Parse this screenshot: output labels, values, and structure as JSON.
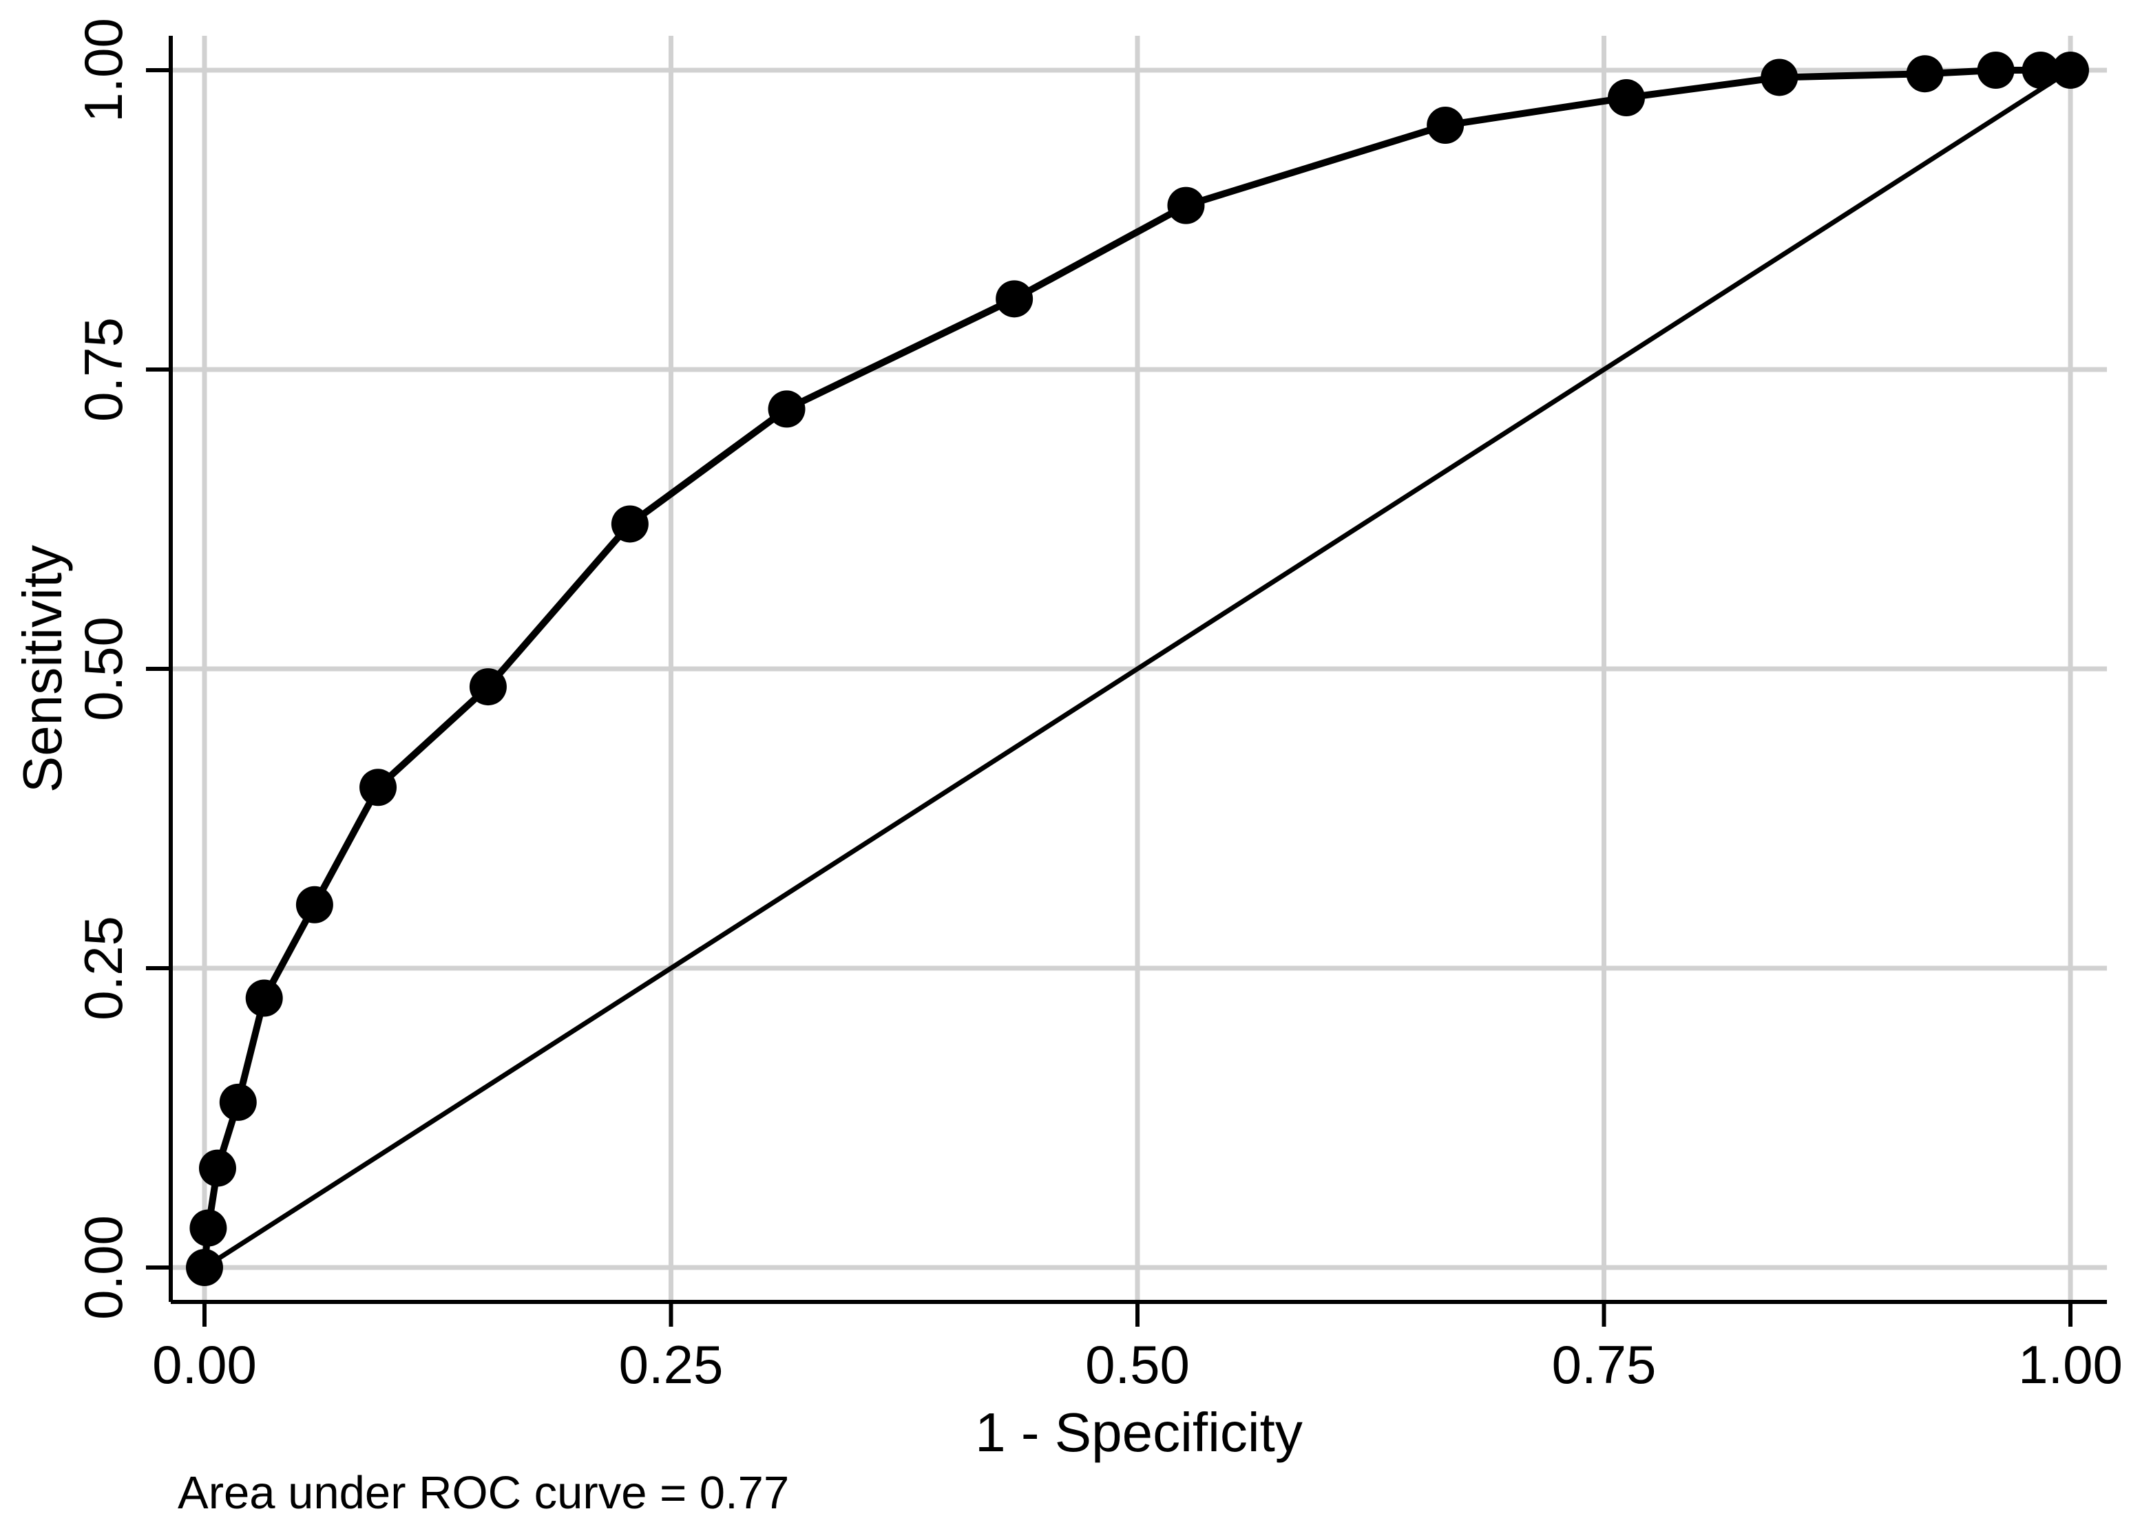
{
  "chart_data": {
    "type": "line",
    "title": "",
    "xlabel": "1 - Specificity",
    "ylabel": "Sensitivity",
    "xlim": [
      0,
      1
    ],
    "ylim": [
      0,
      1
    ],
    "grid": true,
    "legend": "none",
    "x_tick_values": [
      0,
      0.25,
      0.5,
      0.75,
      1
    ],
    "x_tick_labels": [
      "0.00",
      "0.25",
      "0.50",
      "0.75",
      "1.00"
    ],
    "y_tick_values": [
      0,
      0.25,
      0.5,
      0.75,
      1
    ],
    "y_tick_labels": [
      "0.00",
      "0.25",
      "0.50",
      "0.75",
      "1.00"
    ],
    "annotation": "Area under ROC curve = 0.77",
    "auc": 0.77,
    "series": [
      {
        "name": "ROC curve",
        "style": "line-with-markers",
        "marker": "filled-circle",
        "points": [
          [
            0.0,
            0.0
          ],
          [
            0.002,
            0.033
          ],
          [
            0.007,
            0.083
          ],
          [
            0.018,
            0.138
          ],
          [
            0.032,
            0.225
          ],
          [
            0.059,
            0.303
          ],
          [
            0.093,
            0.401
          ],
          [
            0.152,
            0.485
          ],
          [
            0.228,
            0.621
          ],
          [
            0.312,
            0.717
          ],
          [
            0.434,
            0.809
          ],
          [
            0.526,
            0.887
          ],
          [
            0.665,
            0.954
          ],
          [
            0.762,
            0.977
          ],
          [
            0.844,
            0.994
          ],
          [
            0.922,
            0.997
          ],
          [
            0.96,
            1.0
          ],
          [
            0.984,
            1.0
          ],
          [
            1.0,
            1.0
          ]
        ]
      },
      {
        "name": "Chance diagonal reference line",
        "style": "line",
        "marker": "none",
        "points": [
          [
            0,
            0
          ],
          [
            1,
            1
          ]
        ]
      }
    ]
  },
  "colors": {
    "background": "#ffffff",
    "curve": "#000000",
    "marker": "#000000",
    "reference_line": "#000000",
    "grid": "#d1d1d1",
    "axis": "#000000",
    "text": "#000000"
  }
}
